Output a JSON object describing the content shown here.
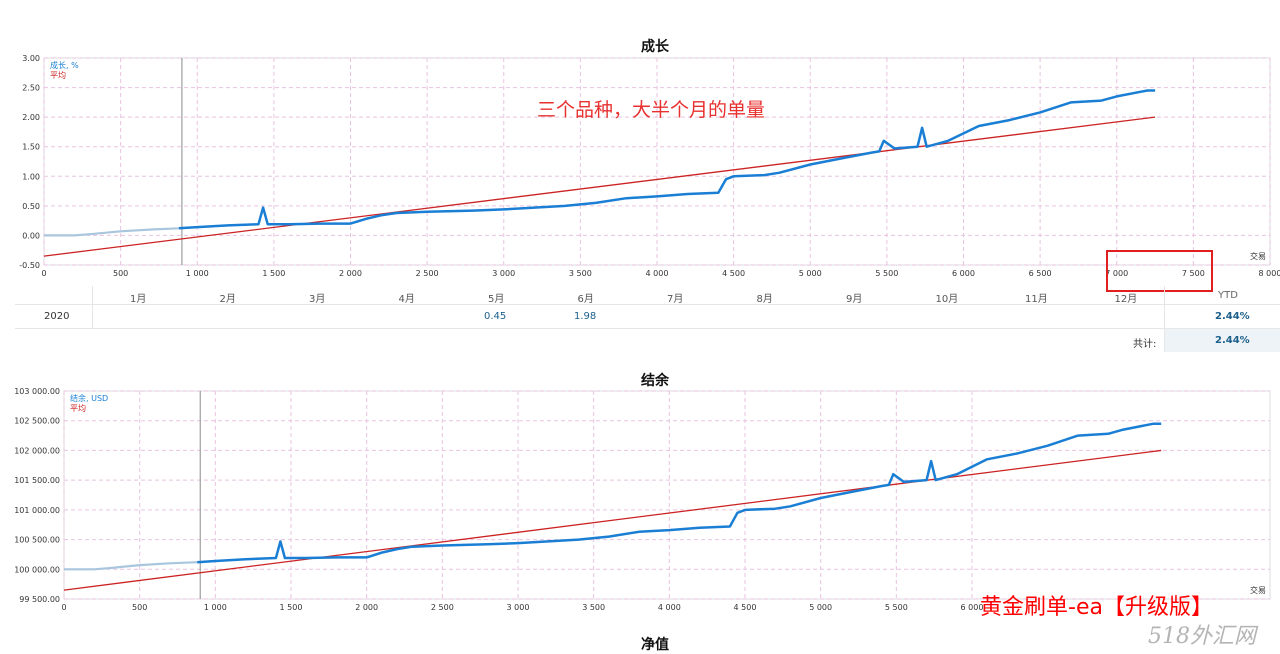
{
  "chart_data": [
    {
      "type": "line",
      "title": "成长",
      "legend": [
        "成长, %",
        "平均"
      ],
      "legend_placement": "top-left",
      "xlabel": "交易",
      "ylim": [
        -0.5,
        3.0
      ],
      "xlim": [
        0,
        8000
      ],
      "yticks": [
        "3.00",
        "2.50",
        "2.00",
        "1.50",
        "1.00",
        "0.50",
        "0.00",
        "-0.50"
      ],
      "xticks": [
        "0",
        "500",
        "1 000",
        "1 500",
        "2 000",
        "2 500",
        "3 000",
        "3 500",
        "4 000",
        "4 500",
        "5 000",
        "5 500",
        "6 000",
        "6 500",
        "7 000",
        "7 500",
        "8 000"
      ],
      "grid": true,
      "series": [
        {
          "name": "成长, %",
          "x": [
            0,
            200,
            300,
            500,
            700,
            880,
            1000,
            1200,
            1400,
            1430,
            1460,
            1600,
            1800,
            2000,
            2100,
            2200,
            2300,
            2500,
            2800,
            3000,
            3200,
            3400,
            3600,
            3800,
            4000,
            4200,
            4400,
            4450,
            4500,
            4700,
            4800,
            5000,
            5200,
            5400,
            5450,
            5480,
            5550,
            5700,
            5730,
            5760,
            5900,
            6100,
            6300,
            6500,
            6700,
            6900,
            7000,
            7200,
            7250
          ],
          "y": [
            0.0,
            0.0,
            0.02,
            0.07,
            0.1,
            0.12,
            0.14,
            0.17,
            0.19,
            0.47,
            0.19,
            0.19,
            0.2,
            0.2,
            0.28,
            0.34,
            0.38,
            0.4,
            0.42,
            0.44,
            0.47,
            0.5,
            0.55,
            0.63,
            0.66,
            0.7,
            0.72,
            0.95,
            1.0,
            1.02,
            1.06,
            1.2,
            1.3,
            1.4,
            1.42,
            1.6,
            1.47,
            1.5,
            1.82,
            1.5,
            1.6,
            1.85,
            1.95,
            2.08,
            2.25,
            2.28,
            2.35,
            2.45,
            2.45
          ]
        },
        {
          "name": "平均",
          "x": [
            0,
            7250
          ],
          "y": [
            -0.35,
            2.0
          ]
        }
      ],
      "vertical_marker_x": 900,
      "table": {
        "months": [
          "1月",
          "2月",
          "3月",
          "4月",
          "5月",
          "6月",
          "7月",
          "8月",
          "9月",
          "10月",
          "11月",
          "12月"
        ],
        "ytd_label": "YTD",
        "rows": [
          {
            "year": "2020",
            "may": "0.45",
            "jun": "1.98",
            "ytd": "2.44%"
          }
        ],
        "total_label": "共计:",
        "total": "2.44%"
      },
      "annotation": "三个品种，大半个月的单量"
    },
    {
      "type": "line",
      "title": "结余",
      "legend": [
        "结余, USD",
        "平均"
      ],
      "legend_placement": "top-left",
      "xlabel": "交易",
      "ylim": [
        99500,
        103000
      ],
      "xlim": [
        0,
        8000
      ],
      "yticks": [
        "103 000.00",
        "102 500.00",
        "102 000.00",
        "101 500.00",
        "101 000.00",
        "100 500.00",
        "100 000.00",
        "99 500.00"
      ],
      "xticks": [
        "0",
        "500",
        "1 000",
        "1 500",
        "2 000",
        "2 500",
        "3 000",
        "3 500",
        "4 000",
        "4 500",
        "5 000",
        "5 500",
        "6 000"
      ],
      "grid": true,
      "series": [
        {
          "name": "结余, USD",
          "x": [
            0,
            200,
            300,
            500,
            700,
            880,
            1000,
            1200,
            1400,
            1430,
            1460,
            1600,
            1800,
            2000,
            2100,
            2200,
            2300,
            2500,
            2800,
            3000,
            3200,
            3400,
            3600,
            3800,
            4000,
            4200,
            4400,
            4450,
            4500,
            4700,
            4800,
            5000,
            5200,
            5400,
            5450,
            5480,
            5550,
            5700,
            5730,
            5760,
            5900,
            6100,
            6300,
            6500,
            6700,
            6900,
            7000,
            7200,
            7250
          ],
          "y": [
            100000,
            100000,
            100020,
            100070,
            100100,
            100120,
            100140,
            100170,
            100190,
            100470,
            100190,
            100190,
            100200,
            100200,
            100280,
            100340,
            100380,
            100400,
            100420,
            100440,
            100470,
            100500,
            100550,
            100630,
            100660,
            100700,
            100720,
            100950,
            101000,
            101020,
            101060,
            101200,
            101300,
            101400,
            101420,
            101600,
            101470,
            101500,
            101820,
            101500,
            101600,
            101850,
            101950,
            102080,
            102250,
            102280,
            102350,
            102450,
            102450
          ]
        },
        {
          "name": "平均",
          "x": [
            0,
            7250
          ],
          "y": [
            99650,
            102000
          ]
        }
      ],
      "vertical_marker_x": 900
    },
    {
      "type": "line",
      "title": "净值"
    }
  ],
  "watermark": "黄金刷单-ea【升级版】",
  "watermark2": "518外汇网",
  "colors": {
    "growth": "#1a7fd4",
    "growth_early": "#a9c6de",
    "average": "#cc2222",
    "annotation": "#e8302f",
    "watermark": "#ff0000",
    "grid": "#e7c3e0"
  }
}
